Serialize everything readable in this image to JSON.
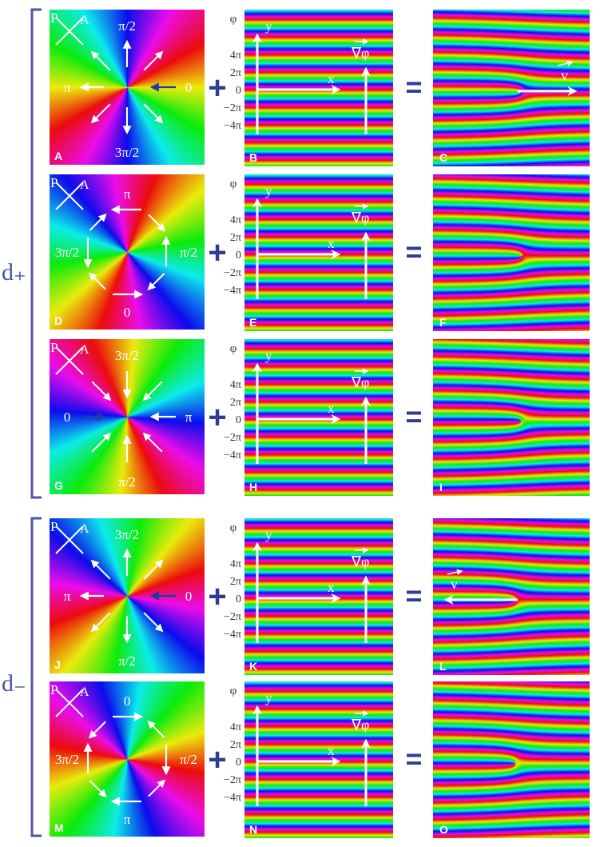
{
  "colors": {
    "bracket": "#4a56a8",
    "operator": "#2e3d92",
    "arrow_white": "#ffffff",
    "arrow_blue": "#1f3aa0"
  },
  "groups": [
    {
      "label": "d₊",
      "rows": [
        0,
        1,
        2
      ]
    },
    {
      "label": "d₋",
      "rows": [
        3,
        4
      ]
    }
  ],
  "operators": {
    "plus": "+",
    "equals": "="
  },
  "polarizer": {
    "p": "P",
    "a": "A"
  },
  "stripe_axis": {
    "ticks": [
      "4π",
      "2π",
      "0",
      "−2π",
      "−4π"
    ],
    "phi": "φ",
    "y": "y",
    "x": "x",
    "grad": "∇φ"
  },
  "velocity_label": "v",
  "rows": [
    {
      "texture_label": "A",
      "stripes_label": "B",
      "result_label": "C",
      "texture_arrows": [
        {
          "label": "π/2",
          "dir": "out"
        },
        {
          "label": "π",
          "dir": "out"
        },
        {
          "label": "0",
          "dir": "in"
        },
        {
          "label": "3π/2",
          "dir": "out"
        }
      ],
      "hue_offset": 60,
      "wind": 1,
      "fork": "right",
      "velocity": "right"
    },
    {
      "texture_label": "D",
      "stripes_label": "E",
      "result_label": "F",
      "texture_arrows": [
        {
          "label": "π",
          "dir": "ccw"
        },
        {
          "label": "3π/2",
          "dir": "ccw"
        },
        {
          "label": "π/2",
          "dir": "ccw"
        },
        {
          "label": "0",
          "dir": "ccw"
        }
      ],
      "hue_offset": 140,
      "wind": 1,
      "fork": "right",
      "velocity": "none"
    },
    {
      "texture_label": "G",
      "stripes_label": "H",
      "result_label": "I",
      "texture_arrows": [
        {
          "label": "3π/2",
          "dir": "in"
        },
        {
          "label": "0",
          "dir": "in"
        },
        {
          "label": "π",
          "dir": "in"
        },
        {
          "label": "π/2",
          "dir": "in"
        }
      ],
      "hue_offset": 230,
      "wind": 1,
      "fork": "right",
      "velocity": "none"
    },
    {
      "texture_label": "J",
      "stripes_label": "K",
      "result_label": "L",
      "texture_arrows": [
        {
          "label": "3π/2",
          "dir": "out"
        },
        {
          "label": "π",
          "dir": "out"
        },
        {
          "label": "0",
          "dir": "in"
        },
        {
          "label": "π/2",
          "dir": "out"
        }
      ],
      "hue_offset": 320,
      "wind": -1,
      "fork": "left",
      "velocity": "left"
    },
    {
      "texture_label": "M",
      "stripes_label": "N",
      "result_label": "O",
      "texture_arrows": [
        {
          "label": "0",
          "dir": "cw"
        },
        {
          "label": "3π/2",
          "dir": "cw"
        },
        {
          "label": "π/2",
          "dir": "cw"
        },
        {
          "label": "π",
          "dir": "cw"
        }
      ],
      "hue_offset": 20,
      "wind": -1,
      "fork": "left",
      "velocity": "none"
    }
  ]
}
